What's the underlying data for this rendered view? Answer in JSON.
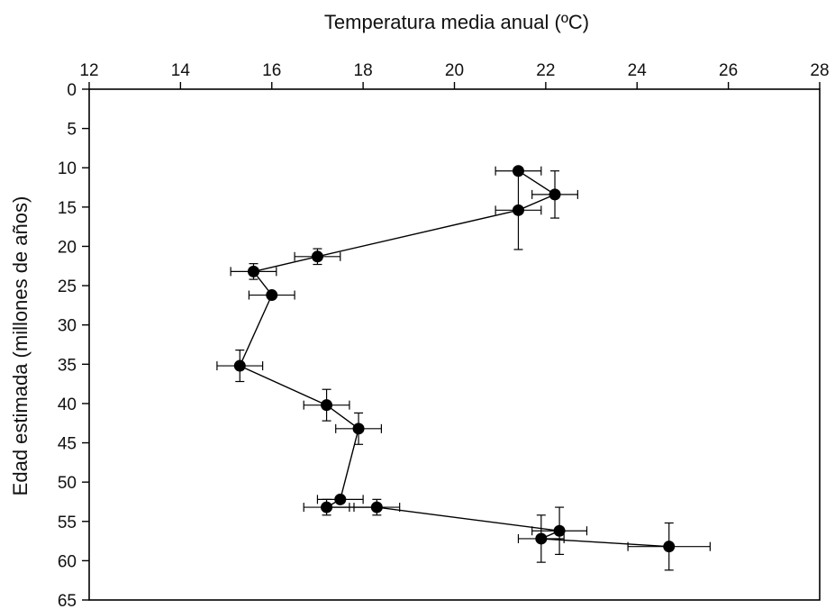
{
  "chart_data": {
    "type": "scatter",
    "title": "",
    "xlabel": "Temperatura media anual (ºC)",
    "ylabel": "Edad estimada (millones de años)",
    "x_axis_position": "top",
    "y_axis_inverted": true,
    "xlim": [
      12,
      28
    ],
    "ylim": [
      0,
      65
    ],
    "xticks": [
      12,
      14,
      16,
      18,
      20,
      22,
      24,
      26,
      28
    ],
    "yticks": [
      0,
      5,
      10,
      15,
      20,
      25,
      30,
      35,
      40,
      45,
      50,
      55,
      60,
      65
    ],
    "grid": false,
    "legend": "none",
    "connect_points": true,
    "series": [
      {
        "marker": "filled-circle",
        "color": "#000000",
        "points": [
          {
            "temp": 21.4,
            "age": 10.4,
            "temp_err": 0.5,
            "age_err": 0.0
          },
          {
            "temp": 22.2,
            "age": 13.4,
            "temp_err": 0.5,
            "age_err": 3.0
          },
          {
            "temp": 21.4,
            "age": 15.4,
            "temp_err": 0.5,
            "age_err": 5.0
          },
          {
            "temp": 17.0,
            "age": 21.3,
            "temp_err": 0.5,
            "age_err": 1.0
          },
          {
            "temp": 15.6,
            "age": 23.2,
            "temp_err": 0.5,
            "age_err": 1.0
          },
          {
            "temp": 16.0,
            "age": 26.2,
            "temp_err": 0.5,
            "age_err": 0.0
          },
          {
            "temp": 15.3,
            "age": 35.2,
            "temp_err": 0.5,
            "age_err": 2.0
          },
          {
            "temp": 17.2,
            "age": 40.2,
            "temp_err": 0.5,
            "age_err": 2.0
          },
          {
            "temp": 17.9,
            "age": 43.2,
            "temp_err": 0.5,
            "age_err": 2.0
          },
          {
            "temp": 17.5,
            "age": 52.2,
            "temp_err": 0.5,
            "age_err": 0.0
          },
          {
            "temp": 17.2,
            "age": 53.2,
            "temp_err": 0.5,
            "age_err": 1.0
          },
          {
            "temp": 18.3,
            "age": 53.2,
            "temp_err": 0.5,
            "age_err": 1.0
          },
          {
            "temp": 22.3,
            "age": 56.2,
            "temp_err": 0.6,
            "age_err": 3.0
          },
          {
            "temp": 21.9,
            "age": 57.2,
            "temp_err": 0.5,
            "age_err": 3.0
          },
          {
            "temp": 24.7,
            "age": 58.2,
            "temp_err": 0.9,
            "age_err": 3.0
          }
        ]
      }
    ]
  }
}
